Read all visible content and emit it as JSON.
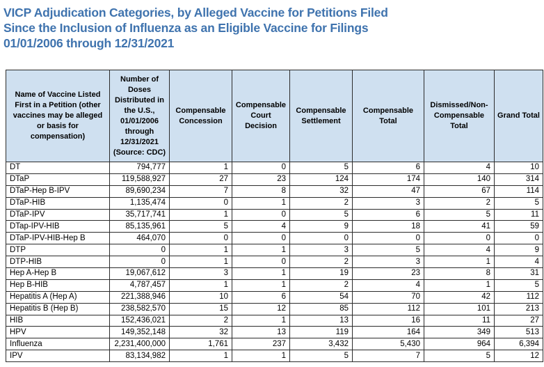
{
  "title": {
    "line1": "VICP Adjudication Categories, by Alleged Vaccine for Petitions Filed",
    "line2": "Since the Inclusion of Influenza as an Eligible Vaccine for Filings",
    "line3": "01/01/2006 through 12/31/2021"
  },
  "colors": {
    "title_text": "#3F73AE",
    "header_fill": "#CFE0F0",
    "grid_border": "#2B2B2B"
  },
  "table": {
    "columns": [
      "Name of Vaccine Listed First in a Petition (other vaccines may be alleged or basis for compensation)",
      "Number of Doses Distributed in the U.S., 01/01/2006 through 12/31/2021 (Source: CDC)",
      "Compensable Concession",
      "Compensable Court Decision",
      "Compensable Settlement",
      "Compensable Total",
      "Dismissed/Non-Compensable Total",
      "Grand Total"
    ],
    "rows": [
      [
        "DT",
        "794,777",
        "1",
        "0",
        "5",
        "6",
        "4",
        "10"
      ],
      [
        "DTaP",
        "119,588,927",
        "27",
        "23",
        "124",
        "174",
        "140",
        "314"
      ],
      [
        "DTaP-Hep B-IPV",
        "89,690,234",
        "7",
        "8",
        "32",
        "47",
        "67",
        "114"
      ],
      [
        "DTaP-HIB",
        "1,135,474",
        "0",
        "1",
        "2",
        "3",
        "2",
        "5"
      ],
      [
        "DTaP-IPV",
        "35,717,741",
        "1",
        "0",
        "5",
        "6",
        "5",
        "11"
      ],
      [
        "DTap-IPV-HIB",
        "85,135,961",
        "5",
        "4",
        "9",
        "18",
        "41",
        "59"
      ],
      [
        "DTaP-IPV-HIB-Hep B",
        "464,070",
        "0",
        "0",
        "0",
        "0",
        "0",
        "0"
      ],
      [
        "DTP",
        "0",
        "1",
        "1",
        "3",
        "5",
        "4",
        "9"
      ],
      [
        "DTP-HIB",
        "0",
        "1",
        "0",
        "2",
        "3",
        "1",
        "4"
      ],
      [
        "Hep A-Hep B",
        "19,067,612",
        "3",
        "1",
        "19",
        "23",
        "8",
        "31"
      ],
      [
        "Hep B-HIB",
        "4,787,457",
        "1",
        "1",
        "2",
        "4",
        "1",
        "5"
      ],
      [
        "Hepatitis A (Hep A)",
        "221,388,946",
        "10",
        "6",
        "54",
        "70",
        "42",
        "112"
      ],
      [
        "Hepatitis B (Hep B)",
        "238,582,570",
        "15",
        "12",
        "85",
        "112",
        "101",
        "213"
      ],
      [
        "HIB",
        "152,436,021",
        "2",
        "1",
        "13",
        "16",
        "11",
        "27"
      ],
      [
        "HPV",
        "149,352,148",
        "32",
        "13",
        "119",
        "164",
        "349",
        "513"
      ],
      [
        "Influenza",
        "2,231,400,000",
        "1,761",
        "237",
        "3,432",
        "5,430",
        "964",
        "6,394"
      ],
      [
        "IPV",
        "83,134,982",
        "1",
        "1",
        "5",
        "7",
        "5",
        "12"
      ]
    ]
  }
}
